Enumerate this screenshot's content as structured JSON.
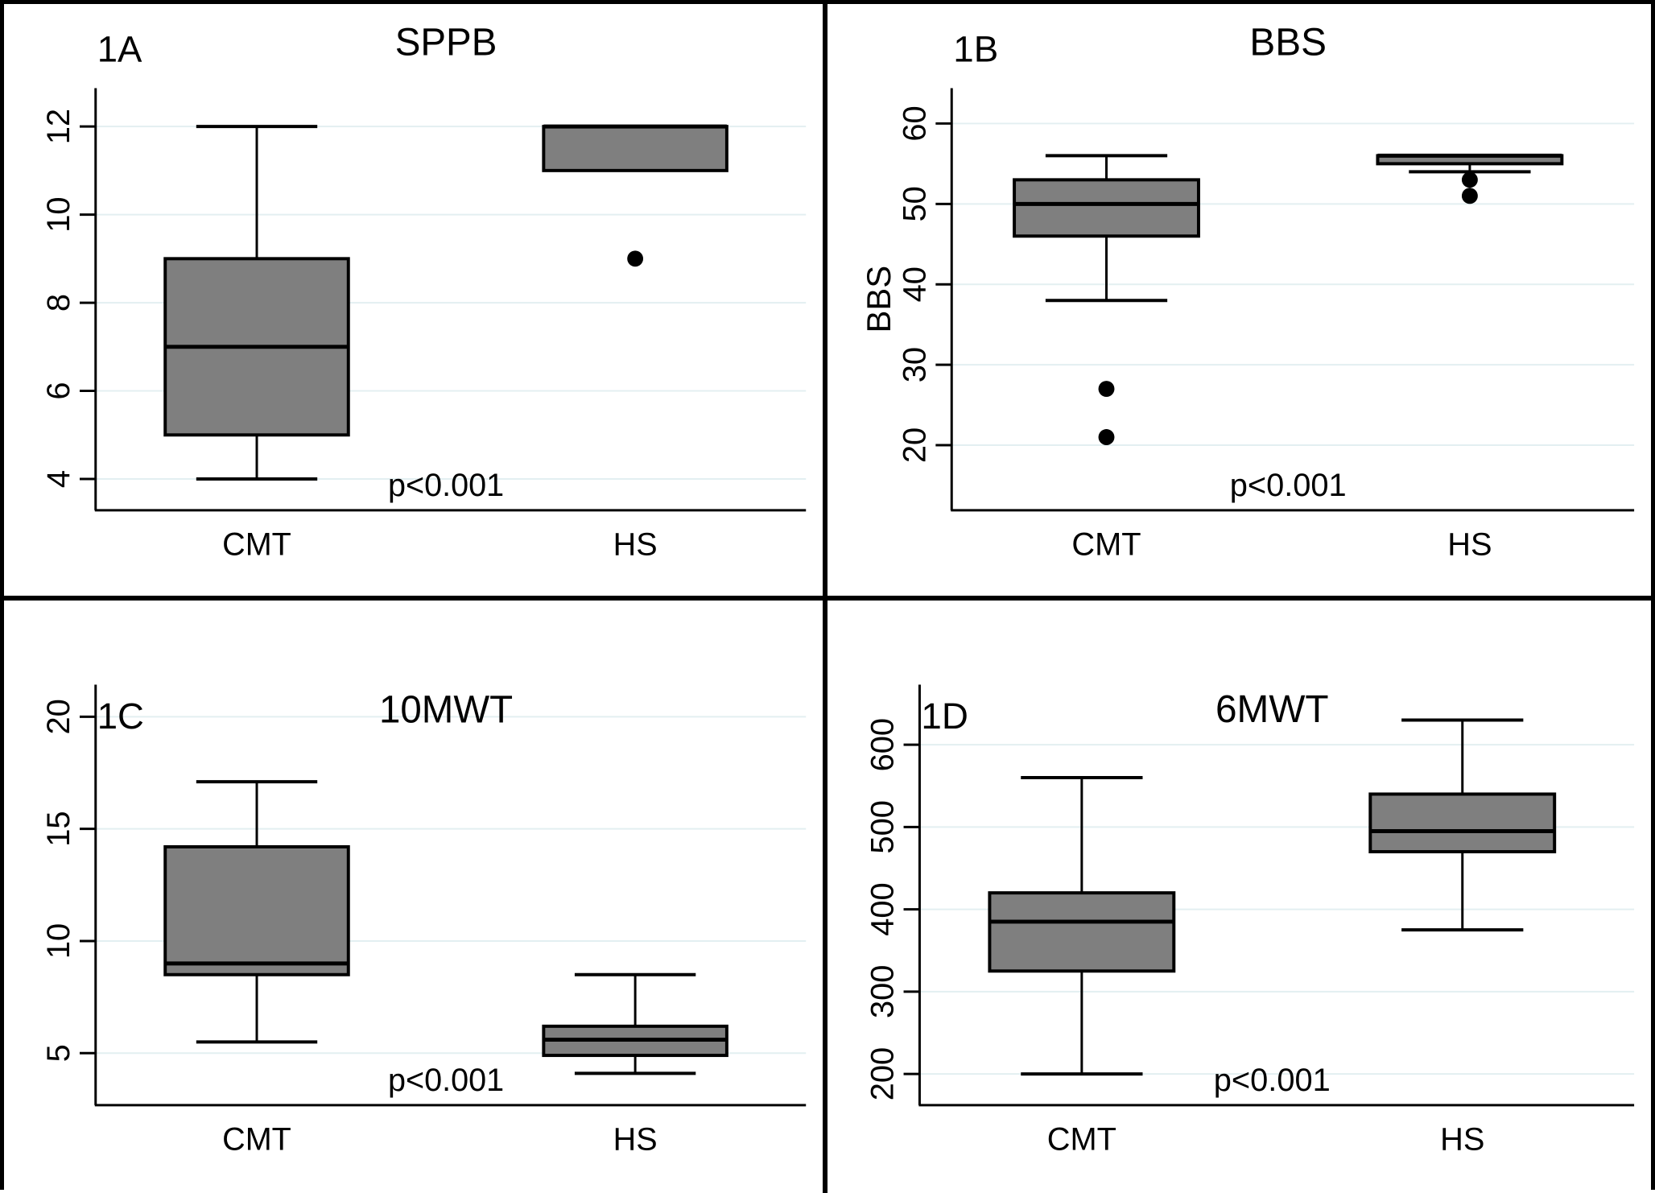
{
  "figure": {
    "background": "#ffffff",
    "border_color": "#000000",
    "box_fill": "#7f7f7f",
    "box_stroke": "#000000",
    "gridline_color": "#e3eff1",
    "outlier_color": "#000000",
    "text_color": "#000000"
  },
  "chart_data": [
    {
      "id": "1A",
      "type": "box",
      "panel_label": "1A",
      "title": "SPPB",
      "ylabel": "",
      "categories": [
        "CMT",
        "HS"
      ],
      "ticks": [
        4,
        6,
        8,
        10,
        12
      ],
      "ylim": [
        3.29,
        12.87
      ],
      "grid": true,
      "p_label": "p<0.001",
      "series": [
        {
          "name": "CMT",
          "whislo": 4,
          "q1": 5,
          "med": 7,
          "q3": 9,
          "whishi": 12,
          "outliers": []
        },
        {
          "name": "HS",
          "whislo": 11,
          "q1": 11,
          "med": 12,
          "q3": 12,
          "whishi": 12,
          "outliers": [
            9
          ]
        }
      ]
    },
    {
      "id": "1B",
      "type": "box",
      "panel_label": "1B",
      "title": "BBS",
      "ylabel": "BBS",
      "categories": [
        "CMT",
        "HS"
      ],
      "ticks": [
        20,
        30,
        40,
        50,
        60
      ],
      "ylim": [
        11.9,
        64.4
      ],
      "grid": true,
      "p_label": "p<0.001",
      "series": [
        {
          "name": "CMT",
          "whislo": 38,
          "q1": 46,
          "med": 50,
          "q3": 53,
          "whishi": 56,
          "outliers": [
            27,
            21
          ]
        },
        {
          "name": "HS",
          "whislo": 54,
          "q1": 55,
          "med": 56,
          "q3": 56,
          "whishi": 56,
          "outliers": [
            53,
            51
          ]
        }
      ]
    },
    {
      "id": "1C",
      "type": "box",
      "panel_label": "1C",
      "title": "10MWT",
      "ylabel": "",
      "categories": [
        "CMT",
        "HS"
      ],
      "ticks": [
        5,
        10,
        15,
        20
      ],
      "ylim": [
        2.68,
        21.43
      ],
      "grid": true,
      "p_label": "p<0.001",
      "series": [
        {
          "name": "CMT",
          "whislo": 5.5,
          "q1": 8.5,
          "med": 9,
          "q3": 14.2,
          "whishi": 17.1,
          "outliers": []
        },
        {
          "name": "HS",
          "whislo": 4.1,
          "q1": 4.9,
          "med": 5.6,
          "q3": 6.2,
          "whishi": 8.5,
          "outliers": []
        }
      ]
    },
    {
      "id": "1D",
      "type": "box",
      "panel_label": "1D",
      "title": "6MWT",
      "ylabel": "",
      "categories": [
        "CMT",
        "HS"
      ],
      "ticks": [
        200,
        300,
        400,
        500,
        600
      ],
      "ylim": [
        162,
        673
      ],
      "grid": true,
      "p_label": "p<0.001",
      "series": [
        {
          "name": "CMT",
          "whislo": 200,
          "q1": 325,
          "med": 385,
          "q3": 420,
          "whishi": 560,
          "outliers": []
        },
        {
          "name": "HS",
          "whislo": 375,
          "q1": 470,
          "med": 495,
          "q3": 540,
          "whishi": 630,
          "outliers": []
        }
      ]
    }
  ]
}
